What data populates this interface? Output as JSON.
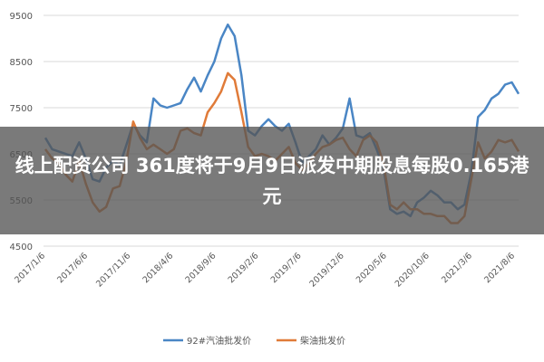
{
  "banner": {
    "headline": "线上配资公司 361度将于9月9日派发中期股息每股0.165港元"
  },
  "colors": {
    "series_92": "#4a86c5",
    "series_diesel": "#e07b39",
    "grid": "#d9d9d9"
  },
  "chart_data": {
    "type": "line",
    "title": "",
    "xlabel": "",
    "ylabel": "",
    "ylim": [
      4500,
      9500
    ],
    "yticks": [
      "4500",
      "5500",
      "6500",
      "7500",
      "8500",
      "9500"
    ],
    "x_tick_labels": [
      "2017/1/6",
      "2017/6/6",
      "2017/11/6",
      "2018/4/6",
      "2018/9/6",
      "2019/2/6",
      "2019/7/6",
      "2019/12/6",
      "2020/5/6",
      "2020/10/6",
      "2021/3/6",
      "2021/8/6"
    ],
    "grid": true,
    "legend_position": "bottom",
    "series": [
      {
        "name": "92#汽油批发价",
        "color": "#4a86c5",
        "values": [
          6850,
          6600,
          6550,
          6500,
          6450,
          6750,
          6400,
          5950,
          5900,
          6200,
          6350,
          6250,
          6700,
          7150,
          6900,
          6750,
          7700,
          7550,
          7500,
          7550,
          7600,
          7900,
          8150,
          7850,
          8200,
          8500,
          9000,
          9300,
          9050,
          8200,
          7000,
          6900,
          7100,
          7250,
          7100,
          7000,
          7150,
          6750,
          6300,
          6450,
          6600,
          6900,
          6700,
          6850,
          7050,
          7700,
          6900,
          6850,
          6950,
          6600,
          6200,
          5300,
          5200,
          5250,
          5150,
          5450,
          5550,
          5700,
          5600,
          5450,
          5450,
          5300,
          5400,
          6100,
          7300,
          7450,
          7700,
          7800,
          8000,
          8050,
          7800
        ]
      },
      {
        "name": "柴油批发价",
        "color": "#e07b39",
        "values": [
          6600,
          6400,
          6300,
          6050,
          5900,
          6350,
          5850,
          5450,
          5250,
          5350,
          5750,
          5800,
          6350,
          7200,
          6850,
          6600,
          6700,
          6600,
          6500,
          6600,
          7000,
          7050,
          6950,
          6900,
          7400,
          7600,
          7850,
          8250,
          8100,
          7400,
          6650,
          6450,
          6500,
          6450,
          6350,
          6500,
          6650,
          6300,
          6150,
          6300,
          6500,
          6650,
          6700,
          6800,
          6850,
          6600,
          6450,
          6800,
          6900,
          6750,
          6300,
          5400,
          5300,
          5450,
          5300,
          5300,
          5200,
          5200,
          5150,
          5150,
          5000,
          5000,
          5150,
          5950,
          6750,
          6400,
          6550,
          6800,
          6750,
          6800,
          6550
        ]
      }
    ]
  }
}
